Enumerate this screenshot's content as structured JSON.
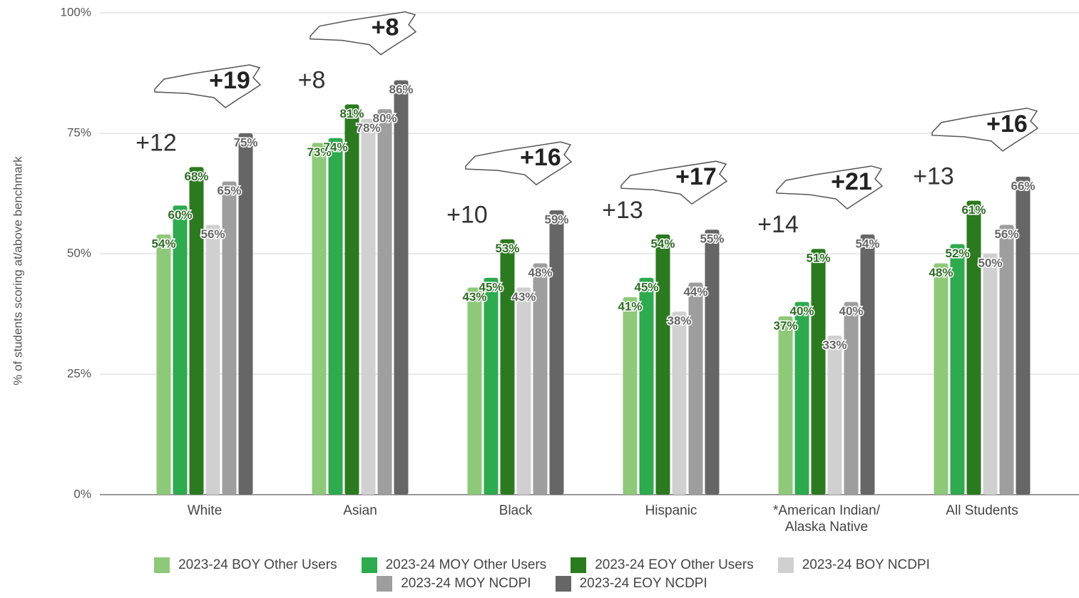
{
  "chart_data": {
    "type": "bar",
    "ylabel": "% of students scoring at/above benchmark",
    "categories": [
      "White",
      "Asian",
      "Black",
      "Hispanic",
      "*American Indian/ Alaska Native",
      "All Students"
    ],
    "series": [
      {
        "name": "2023-24 BOY Other Users",
        "color": "#8ec97a",
        "values": [
          54,
          73,
          43,
          41,
          37,
          48
        ],
        "value_labels": [
          "54%",
          "73%",
          "43%",
          "41%",
          "37%",
          "48%"
        ]
      },
      {
        "name": "2023-24 MOY Other Users",
        "color": "#2eaa4f",
        "values": [
          60,
          74,
          45,
          45,
          40,
          52
        ],
        "value_labels": [
          "60%",
          "74%",
          "45%",
          "45%",
          "40%",
          "52%"
        ]
      },
      {
        "name": "2023-24 EOY Other Users",
        "color": "#2b7a1f",
        "values": [
          68,
          81,
          53,
          54,
          51,
          61
        ],
        "value_labels": [
          "68%",
          "81%",
          "53%",
          "54%",
          "51%",
          "61%"
        ]
      },
      {
        "name": "2023-24 BOY NCDPI",
        "color": "#d0d0d0",
        "values": [
          56,
          78,
          43,
          38,
          33,
          50
        ],
        "value_labels": [
          "56%",
          "78%",
          "43%",
          "38%",
          "33%",
          "50%"
        ]
      },
      {
        "name": "2023-24 MOY NCDPI",
        "color": "#9e9e9e",
        "values": [
          65,
          80,
          48,
          44,
          40,
          56
        ],
        "value_labels": [
          "65%",
          "80%",
          "48%",
          "44%",
          "40%",
          "56%"
        ]
      },
      {
        "name": "2023-24 EOY NCDPI",
        "color": "#666666",
        "values": [
          75,
          86,
          59,
          55,
          54,
          66
        ],
        "value_labels": [
          "75%",
          "86%",
          "59%",
          "55%",
          "54%",
          "66%"
        ]
      }
    ],
    "other_users_gains": [
      "+12",
      "+8",
      "+10",
      "+13",
      "+14",
      "+13"
    ],
    "ncdpi_gains": [
      "+19",
      "+8",
      "+16",
      "+17",
      "+21",
      "+16"
    ],
    "ylim": [
      0,
      100
    ],
    "yticks": [
      {
        "value": 0,
        "label": "0%"
      },
      {
        "value": 25,
        "label": "25%"
      },
      {
        "value": 50,
        "label": "50%"
      },
      {
        "value": 75,
        "label": "75%"
      },
      {
        "value": 100,
        "label": "100%"
      }
    ],
    "grid": true
  }
}
